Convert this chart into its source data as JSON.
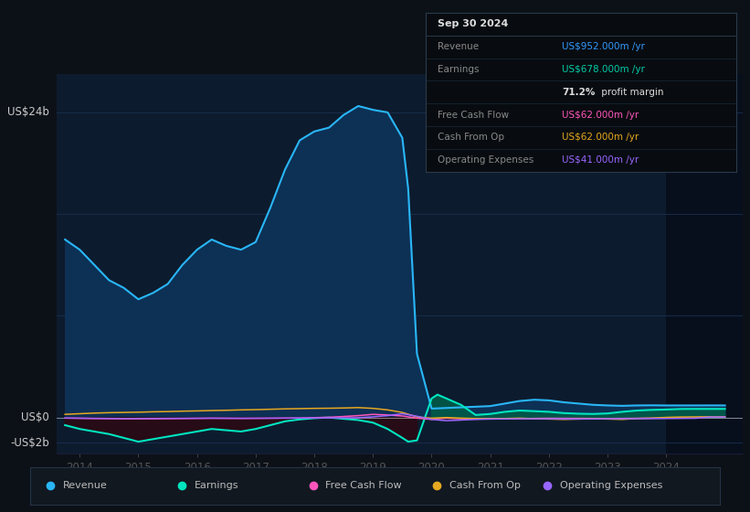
{
  "bg_color": "#0c1118",
  "plot_bg_color": "#0d1b2e",
  "grid_color": "#1a3050",
  "ylim": [
    -2800000000.0,
    27000000000.0
  ],
  "xlim": [
    2013.6,
    2025.3
  ],
  "xtick_labels": [
    "2014",
    "2015",
    "2016",
    "2017",
    "2018",
    "2019",
    "2020",
    "2021",
    "2022",
    "2023",
    "2024"
  ],
  "xtick_positions": [
    2014,
    2015,
    2016,
    2017,
    2018,
    2019,
    2020,
    2021,
    2022,
    2023,
    2024
  ],
  "revenue": {
    "color": "#29b6f6",
    "fill_color": "#0d3055",
    "x": [
      2013.75,
      2014.0,
      2014.25,
      2014.5,
      2014.75,
      2015.0,
      2015.25,
      2015.5,
      2015.75,
      2016.0,
      2016.25,
      2016.5,
      2016.75,
      2017.0,
      2017.25,
      2017.5,
      2017.75,
      2018.0,
      2018.25,
      2018.5,
      2018.75,
      2019.0,
      2019.25,
      2019.5,
      2019.6,
      2019.75,
      2020.0,
      2020.25,
      2020.5,
      2020.75,
      2021.0,
      2021.25,
      2021.5,
      2021.75,
      2022.0,
      2022.25,
      2022.5,
      2022.75,
      2023.0,
      2023.25,
      2023.5,
      2023.75,
      2024.0,
      2024.25,
      2024.5,
      2024.75,
      2025.0
    ],
    "y": [
      14000000000.0,
      13200000000.0,
      12000000000.0,
      10800000000.0,
      10200000000.0,
      9300000000.0,
      9800000000.0,
      10500000000.0,
      12000000000.0,
      13200000000.0,
      14000000000.0,
      13500000000.0,
      13200000000.0,
      13800000000.0,
      16500000000.0,
      19500000000.0,
      21800000000.0,
      22500000000.0,
      22800000000.0,
      23800000000.0,
      24500000000.0,
      24200000000.0,
      24000000000.0,
      22000000000.0,
      18000000000.0,
      5000000000.0,
      700000000.0,
      750000000.0,
      800000000.0,
      850000000.0,
      900000000.0,
      1100000000.0,
      1300000000.0,
      1400000000.0,
      1350000000.0,
      1200000000.0,
      1100000000.0,
      1000000000.0,
      950000000.0,
      920000000.0,
      950000000.0,
      960000000.0,
      950000000.0,
      950000000.0,
      950000000.0,
      952000000.0,
      952000000.0
    ]
  },
  "earnings": {
    "color": "#00e5c0",
    "fill_pos_color": "#005a48",
    "fill_neg_color": "#2a0a14",
    "x": [
      2013.75,
      2014.0,
      2014.25,
      2014.5,
      2014.75,
      2015.0,
      2015.25,
      2015.5,
      2015.75,
      2016.0,
      2016.25,
      2016.5,
      2016.75,
      2017.0,
      2017.25,
      2017.5,
      2017.75,
      2018.0,
      2018.25,
      2018.5,
      2018.75,
      2019.0,
      2019.25,
      2019.5,
      2019.6,
      2019.75,
      2020.0,
      2020.1,
      2020.25,
      2020.5,
      2020.75,
      2021.0,
      2021.25,
      2021.5,
      2021.75,
      2022.0,
      2022.25,
      2022.5,
      2022.75,
      2023.0,
      2023.25,
      2023.5,
      2023.75,
      2024.0,
      2024.25,
      2024.5,
      2024.75,
      2025.0
    ],
    "y": [
      -600000000.0,
      -900000000.0,
      -1100000000.0,
      -1300000000.0,
      -1600000000.0,
      -1900000000.0,
      -1700000000.0,
      -1500000000.0,
      -1300000000.0,
      -1100000000.0,
      -900000000.0,
      -1000000000.0,
      -1100000000.0,
      -900000000.0,
      -600000000.0,
      -300000000.0,
      -150000000.0,
      -50000000.0,
      0.0,
      -100000000.0,
      -200000000.0,
      -400000000.0,
      -900000000.0,
      -1600000000.0,
      -1900000000.0,
      -1800000000.0,
      1500000000.0,
      1800000000.0,
      1500000000.0,
      1000000000.0,
      200000000.0,
      280000000.0,
      450000000.0,
      550000000.0,
      500000000.0,
      450000000.0,
      350000000.0,
      300000000.0,
      280000000.0,
      320000000.0,
      450000000.0,
      550000000.0,
      600000000.0,
      630000000.0,
      670000000.0,
      678000000.0,
      678000000.0,
      678000000.0
    ]
  },
  "free_cash_flow": {
    "color": "#ff55bb",
    "x": [
      2013.75,
      2014.25,
      2014.75,
      2015.25,
      2015.75,
      2016.25,
      2016.75,
      2017.25,
      2017.75,
      2018.25,
      2018.5,
      2018.75,
      2019.0,
      2019.25,
      2019.5,
      2019.75,
      2020.0,
      2020.25,
      2020.5,
      2020.75,
      2021.0,
      2021.5,
      2022.0,
      2022.5,
      2023.0,
      2023.5,
      2024.0,
      2024.5,
      2024.75,
      2025.0
    ],
    "y": [
      -50000000.0,
      -80000000.0,
      -100000000.0,
      -100000000.0,
      -80000000.0,
      -60000000.0,
      -70000000.0,
      -60000000.0,
      -40000000.0,
      20000000.0,
      80000000.0,
      150000000.0,
      250000000.0,
      200000000.0,
      120000000.0,
      -50000000.0,
      -150000000.0,
      -50000000.0,
      -100000000.0,
      -120000000.0,
      -100000000.0,
      -80000000.0,
      -60000000.0,
      -70000000.0,
      -80000000.0,
      -60000000.0,
      -40000000.0,
      -40000000.0,
      62000000.0,
      62000000.0
    ]
  },
  "cash_from_op": {
    "color": "#e6a820",
    "x": [
      2013.75,
      2014.0,
      2014.25,
      2014.5,
      2014.75,
      2015.0,
      2015.25,
      2015.5,
      2015.75,
      2016.0,
      2016.25,
      2016.5,
      2016.75,
      2017.0,
      2017.25,
      2017.5,
      2017.75,
      2018.0,
      2018.25,
      2018.5,
      2018.75,
      2019.0,
      2019.25,
      2019.5,
      2019.75,
      2020.0,
      2020.25,
      2020.5,
      2020.75,
      2021.0,
      2021.25,
      2021.5,
      2021.75,
      2022.0,
      2022.25,
      2022.5,
      2022.75,
      2023.0,
      2023.25,
      2023.5,
      2023.75,
      2024.0,
      2024.25,
      2024.5,
      2024.75,
      2025.0
    ],
    "y": [
      250000000.0,
      300000000.0,
      350000000.0,
      380000000.0,
      400000000.0,
      420000000.0,
      450000000.0,
      470000000.0,
      500000000.0,
      520000000.0,
      550000000.0,
      570000000.0,
      600000000.0,
      620000000.0,
      650000000.0,
      680000000.0,
      700000000.0,
      720000000.0,
      730000000.0,
      750000000.0,
      780000000.0,
      720000000.0,
      600000000.0,
      400000000.0,
      50000000.0,
      -50000000.0,
      0.0,
      -50000000.0,
      -80000000.0,
      -100000000.0,
      -80000000.0,
      -50000000.0,
      -100000000.0,
      -120000000.0,
      -150000000.0,
      -120000000.0,
      -100000000.0,
      -120000000.0,
      -150000000.0,
      -80000000.0,
      -50000000.0,
      10000000.0,
      40000000.0,
      50000000.0,
      62000000.0,
      62000000.0
    ]
  },
  "operating_expenses": {
    "color": "#9966ff",
    "x": [
      2013.75,
      2014.25,
      2014.75,
      2015.25,
      2015.75,
      2016.25,
      2016.75,
      2017.25,
      2017.75,
      2018.25,
      2018.75,
      2019.0,
      2019.25,
      2019.5,
      2019.75,
      2020.0,
      2020.25,
      2020.5,
      2020.75,
      2021.0,
      2021.5,
      2022.0,
      2022.5,
      2023.0,
      2023.5,
      2024.0,
      2024.5,
      2024.75,
      2025.0
    ],
    "y": [
      -40000000.0,
      -60000000.0,
      -80000000.0,
      -70000000.0,
      -60000000.0,
      -50000000.0,
      -60000000.0,
      -50000000.0,
      -40000000.0,
      -30000000.0,
      -20000000.0,
      50000000.0,
      150000000.0,
      300000000.0,
      100000000.0,
      -150000000.0,
      -250000000.0,
      -200000000.0,
      -150000000.0,
      -120000000.0,
      -100000000.0,
      -100000000.0,
      -120000000.0,
      -100000000.0,
      -90000000.0,
      -80000000.0,
      -60000000.0,
      41000000.0,
      41000000.0
    ]
  },
  "legend": [
    {
      "label": "Revenue",
      "color": "#29b6f6"
    },
    {
      "label": "Earnings",
      "color": "#00e5c0"
    },
    {
      "label": "Free Cash Flow",
      "color": "#ff55bb"
    },
    {
      "label": "Cash From Op",
      "color": "#e6a820"
    },
    {
      "label": "Operating Expenses",
      "color": "#9966ff"
    }
  ],
  "right_shade_x_start": 2024.0,
  "info_box_date": "Sep 30 2024",
  "info_rows": [
    {
      "label": "Revenue",
      "value": "US$952.000m /yr",
      "label_color": "#888888",
      "value_color": "#3399ff"
    },
    {
      "label": "Earnings",
      "value": "US$678.000m /yr",
      "label_color": "#888888",
      "value_color": "#00ccaa"
    },
    {
      "label": "",
      "value": "71.2% profit margin",
      "label_color": "#888888",
      "value_color": "#dddddd"
    },
    {
      "label": "Free Cash Flow",
      "value": "US$62.000m /yr",
      "label_color": "#888888",
      "value_color": "#ff55bb"
    },
    {
      "label": "Cash From Op",
      "value": "US$62.000m /yr",
      "label_color": "#888888",
      "value_color": "#e6a820"
    },
    {
      "label": "Operating Expenses",
      "value": "US$41.000m /yr",
      "label_color": "#888888",
      "value_color": "#9966ff"
    }
  ]
}
